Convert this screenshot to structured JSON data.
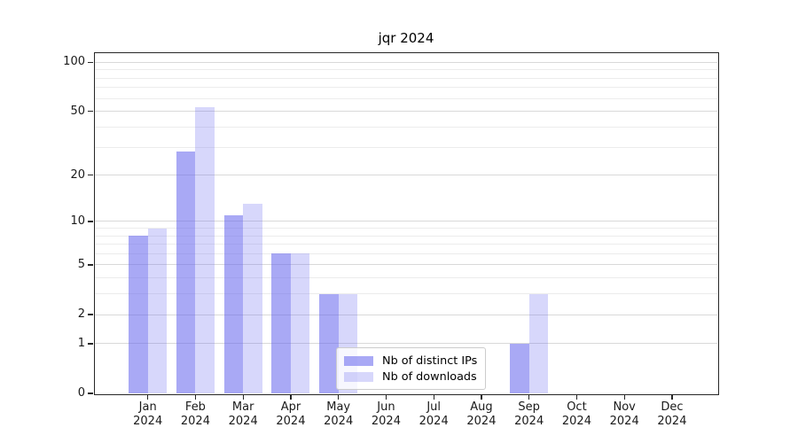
{
  "chart_data": {
    "type": "bar",
    "title": "jqr 2024",
    "categories": [
      "Jan",
      "Feb",
      "Mar",
      "Apr",
      "May",
      "Jun",
      "Jul",
      "Aug",
      "Sep",
      "Oct",
      "Nov",
      "Dec"
    ],
    "category_year": "2024",
    "series": [
      {
        "name": "Nb of distinct IPs",
        "color": "#6666ee",
        "opacity": 0.56,
        "values": [
          8,
          28,
          11,
          6,
          3,
          0,
          0,
          0,
          1,
          0,
          0,
          0
        ]
      },
      {
        "name": "Nb of downloads",
        "color": "#6666ee",
        "opacity": 0.26,
        "values": [
          9,
          53,
          13,
          6,
          3,
          0,
          0,
          0,
          3,
          0,
          0,
          0
        ]
      }
    ],
    "xlabel": "",
    "ylabel": "",
    "yscale": "log1p",
    "major_yticks": [
      0,
      1,
      2,
      5,
      10,
      20,
      50,
      100
    ],
    "minor_yticks": [
      3,
      4,
      6,
      7,
      8,
      9,
      30,
      40,
      60,
      70,
      80,
      90
    ],
    "ylim": [
      0,
      110
    ],
    "grid": true,
    "legend_position": "lower-center",
    "colors": {
      "grid_major": "#d9d9d9",
      "grid_minor": "#ececec",
      "spine": "#262626",
      "text": "#1a1a1a",
      "background": "#ffffff"
    }
  }
}
